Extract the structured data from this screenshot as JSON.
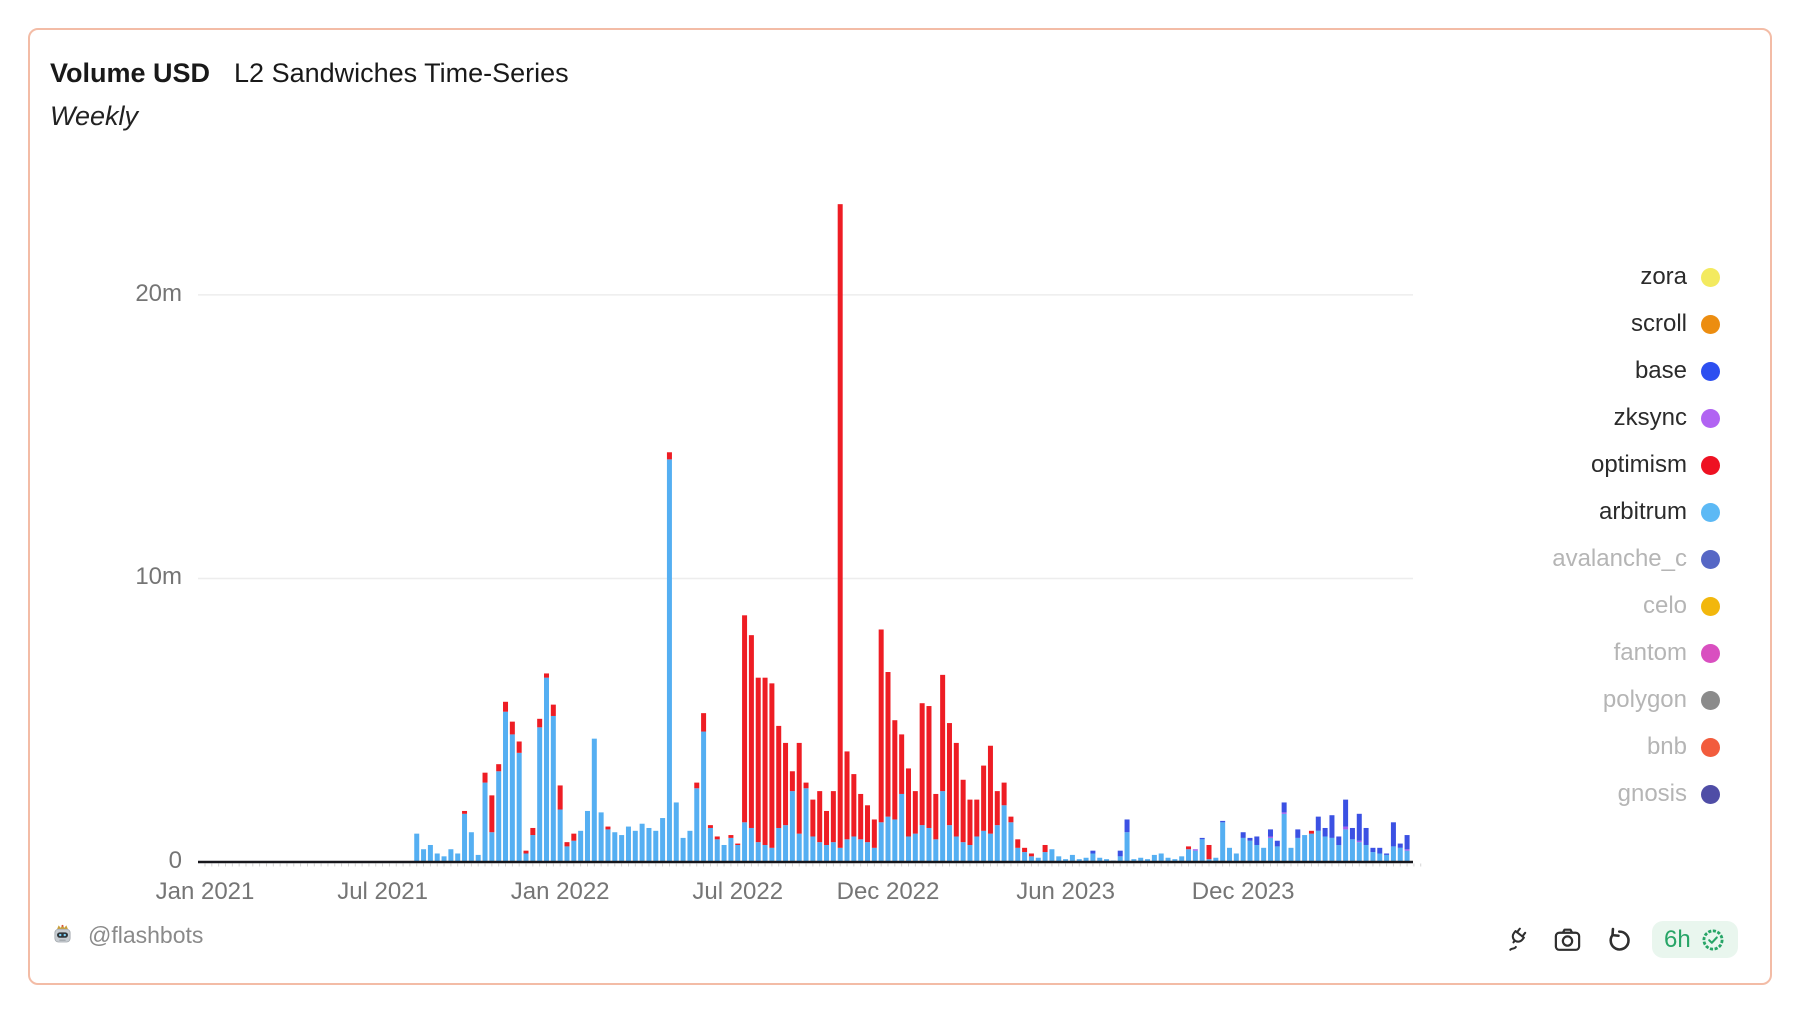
{
  "header": {
    "title_bold": "Volume USD",
    "title": "L2 Sandwiches Time-Series",
    "subtitle": "Weekly"
  },
  "legend": {
    "items": [
      {
        "label": "zora",
        "color": "#f3ea5f",
        "muted": false
      },
      {
        "label": "scroll",
        "color": "#ec8d10",
        "muted": false
      },
      {
        "label": "base",
        "color": "#2d4ff0",
        "muted": false
      },
      {
        "label": "zksync",
        "color": "#b163f2",
        "muted": false
      },
      {
        "label": "optimism",
        "color": "#ee1122",
        "muted": false
      },
      {
        "label": "arbitrum",
        "color": "#5cb9f5",
        "muted": false
      },
      {
        "label": "avalanche_c",
        "color": "#5667c5",
        "muted": true
      },
      {
        "label": "celo",
        "color": "#f2b70c",
        "muted": true
      },
      {
        "label": "fantom",
        "color": "#d94fc0",
        "muted": true
      },
      {
        "label": "polygon",
        "color": "#8b8b8b",
        "muted": true
      },
      {
        "label": "bnb",
        "color": "#f25c3d",
        "muted": true
      },
      {
        "label": "gnosis",
        "color": "#4f4da6",
        "muted": true
      }
    ]
  },
  "footer": {
    "author": "@flashbots",
    "refresh_badge": "6h"
  },
  "chart_data": {
    "type": "bar",
    "stacked": true,
    "title": "Volume USD — L2 Sandwiches Time-Series",
    "subtitle": "Weekly",
    "unit": "USD (millions)",
    "grid": true,
    "legend_position": "right",
    "ylim": [
      0,
      24
    ],
    "y_ticks": [
      {
        "value": 0,
        "label": "0"
      },
      {
        "value": 10,
        "label": "10m"
      },
      {
        "value": 20,
        "label": "20m"
      }
    ],
    "x_ticks": [
      {
        "label": "Jan 2021",
        "date": "2021-01-04"
      },
      {
        "label": "Jul 2021",
        "date": "2021-07-05"
      },
      {
        "label": "Jan 2022",
        "date": "2022-01-03"
      },
      {
        "label": "Jul 2022",
        "date": "2022-07-04"
      },
      {
        "label": "Dec 2022",
        "date": "2022-12-05"
      },
      {
        "label": "Jun 2023",
        "date": "2023-06-05"
      },
      {
        "label": "Dec 2023",
        "date": "2023-12-04"
      }
    ],
    "stack_order": [
      "arbitrum",
      "optimism",
      "zksync",
      "base"
    ],
    "series_colors": {
      "arbitrum": "#55aff2",
      "optimism": "#ee1d24",
      "zksync": "#a55ef0",
      "base": "#3b51e3"
    },
    "columns": [
      "week",
      "arbitrum",
      "optimism",
      "zksync",
      "base"
    ],
    "rows": [
      [
        "2021-08-09",
        1.0,
        0,
        0,
        0
      ],
      [
        "2021-08-16",
        0.45,
        0,
        0,
        0
      ],
      [
        "2021-08-23",
        0.6,
        0,
        0,
        0
      ],
      [
        "2021-08-30",
        0.3,
        0,
        0,
        0
      ],
      [
        "2021-09-06",
        0.2,
        0,
        0,
        0
      ],
      [
        "2021-09-13",
        0.45,
        0,
        0,
        0
      ],
      [
        "2021-09-20",
        0.3,
        0,
        0,
        0
      ],
      [
        "2021-09-27",
        1.7,
        0.1,
        0,
        0
      ],
      [
        "2021-10-04",
        1.05,
        0,
        0,
        0
      ],
      [
        "2021-10-11",
        0.25,
        0,
        0,
        0
      ],
      [
        "2021-10-18",
        2.8,
        0.35,
        0,
        0
      ],
      [
        "2021-10-25",
        1.05,
        1.3,
        0,
        0
      ],
      [
        "2021-11-01",
        3.2,
        0.25,
        0,
        0
      ],
      [
        "2021-11-08",
        5.3,
        0.35,
        0,
        0
      ],
      [
        "2021-11-15",
        4.5,
        0.45,
        0,
        0
      ],
      [
        "2021-11-22",
        3.85,
        0.4,
        0,
        0
      ],
      [
        "2021-11-29",
        0.3,
        0.1,
        0,
        0
      ],
      [
        "2021-12-06",
        0.95,
        0.25,
        0,
        0
      ],
      [
        "2021-12-13",
        4.75,
        0.3,
        0,
        0
      ],
      [
        "2021-12-20",
        6.5,
        0.15,
        0,
        0
      ],
      [
        "2021-12-27",
        5.15,
        0.4,
        0,
        0
      ],
      [
        "2022-01-03",
        1.85,
        0.85,
        0,
        0
      ],
      [
        "2022-01-10",
        0.55,
        0.15,
        0,
        0
      ],
      [
        "2022-01-17",
        0.75,
        0.25,
        0,
        0
      ],
      [
        "2022-01-24",
        1.1,
        0,
        0,
        0
      ],
      [
        "2022-01-31",
        1.8,
        0,
        0,
        0
      ],
      [
        "2022-02-07",
        4.35,
        0,
        0,
        0
      ],
      [
        "2022-02-14",
        1.75,
        0,
        0,
        0
      ],
      [
        "2022-02-21",
        1.15,
        0.1,
        0,
        0
      ],
      [
        "2022-02-28",
        1.05,
        0,
        0,
        0
      ],
      [
        "2022-03-07",
        0.95,
        0,
        0,
        0
      ],
      [
        "2022-03-14",
        1.25,
        0,
        0,
        0
      ],
      [
        "2022-03-21",
        1.1,
        0,
        0,
        0
      ],
      [
        "2022-03-28",
        1.35,
        0,
        0,
        0
      ],
      [
        "2022-04-04",
        1.2,
        0,
        0,
        0
      ],
      [
        "2022-04-11",
        1.1,
        0,
        0,
        0
      ],
      [
        "2022-04-18",
        1.55,
        0,
        0,
        0
      ],
      [
        "2022-04-25",
        14.2,
        0.25,
        0,
        0
      ],
      [
        "2022-05-02",
        2.1,
        0,
        0,
        0
      ],
      [
        "2022-05-09",
        0.85,
        0,
        0,
        0
      ],
      [
        "2022-05-16",
        1.1,
        0,
        0,
        0
      ],
      [
        "2022-05-23",
        2.6,
        0.2,
        0,
        0
      ],
      [
        "2022-05-30",
        4.6,
        0.65,
        0,
        0
      ],
      [
        "2022-06-06",
        1.2,
        0.1,
        0,
        0
      ],
      [
        "2022-06-13",
        0.8,
        0.1,
        0,
        0
      ],
      [
        "2022-06-20",
        0.6,
        0,
        0,
        0
      ],
      [
        "2022-06-27",
        0.85,
        0.1,
        0,
        0
      ],
      [
        "2022-07-04",
        0.6,
        0.05,
        0,
        0
      ],
      [
        "2022-07-11",
        1.4,
        7.3,
        0,
        0
      ],
      [
        "2022-07-18",
        1.2,
        6.8,
        0,
        0
      ],
      [
        "2022-07-25",
        0.7,
        5.8,
        0,
        0
      ],
      [
        "2022-08-01",
        0.6,
        5.9,
        0,
        0
      ],
      [
        "2022-08-08",
        0.5,
        5.8,
        0,
        0
      ],
      [
        "2022-08-15",
        1.2,
        3.6,
        0,
        0
      ],
      [
        "2022-08-22",
        1.3,
        2.9,
        0,
        0
      ],
      [
        "2022-08-29",
        2.5,
        0.7,
        0,
        0
      ],
      [
        "2022-09-05",
        1.0,
        3.2,
        0,
        0
      ],
      [
        "2022-09-12",
        2.6,
        0.2,
        0,
        0
      ],
      [
        "2022-09-19",
        0.9,
        1.3,
        0,
        0
      ],
      [
        "2022-09-26",
        0.7,
        1.8,
        0,
        0
      ],
      [
        "2022-10-03",
        0.6,
        1.2,
        0,
        0
      ],
      [
        "2022-10-10",
        0.7,
        1.8,
        0,
        0
      ],
      [
        "2022-10-17",
        0.5,
        22.7,
        0,
        0
      ],
      [
        "2022-10-24",
        0.8,
        3.1,
        0,
        0
      ],
      [
        "2022-10-31",
        0.9,
        2.2,
        0,
        0
      ],
      [
        "2022-11-07",
        0.8,
        1.6,
        0,
        0
      ],
      [
        "2022-11-14",
        0.7,
        1.3,
        0,
        0
      ],
      [
        "2022-11-21",
        0.5,
        1.0,
        0,
        0
      ],
      [
        "2022-11-28",
        1.4,
        6.8,
        0,
        0
      ],
      [
        "2022-12-05",
        1.6,
        5.1,
        0,
        0
      ],
      [
        "2022-12-12",
        1.5,
        3.5,
        0,
        0
      ],
      [
        "2022-12-19",
        2.4,
        2.1,
        0,
        0
      ],
      [
        "2022-12-26",
        0.9,
        2.4,
        0,
        0
      ],
      [
        "2023-01-02",
        1.0,
        1.5,
        0,
        0
      ],
      [
        "2023-01-09",
        1.3,
        4.3,
        0,
        0
      ],
      [
        "2023-01-16",
        1.2,
        4.3,
        0,
        0
      ],
      [
        "2023-01-23",
        0.8,
        1.6,
        0,
        0
      ],
      [
        "2023-01-30",
        2.5,
        4.1,
        0,
        0
      ],
      [
        "2023-02-06",
        1.3,
        3.6,
        0,
        0
      ],
      [
        "2023-02-13",
        0.9,
        3.3,
        0,
        0
      ],
      [
        "2023-02-20",
        0.7,
        2.2,
        0,
        0
      ],
      [
        "2023-02-27",
        0.6,
        1.6,
        0,
        0
      ],
      [
        "2023-03-06",
        0.9,
        1.3,
        0,
        0
      ],
      [
        "2023-03-13",
        1.1,
        2.3,
        0,
        0
      ],
      [
        "2023-03-20",
        1.0,
        3.1,
        0,
        0
      ],
      [
        "2023-03-27",
        1.3,
        1.2,
        0,
        0
      ],
      [
        "2023-04-03",
        2.0,
        0.8,
        0,
        0
      ],
      [
        "2023-04-10",
        1.4,
        0.2,
        0,
        0
      ],
      [
        "2023-04-17",
        0.5,
        0.3,
        0,
        0
      ],
      [
        "2023-04-24",
        0.35,
        0.15,
        0,
        0
      ],
      [
        "2023-05-01",
        0.2,
        0.1,
        0,
        0
      ],
      [
        "2023-05-08",
        0.15,
        0,
        0,
        0
      ],
      [
        "2023-05-15",
        0.35,
        0.25,
        0,
        0
      ],
      [
        "2023-05-22",
        0.45,
        0,
        0,
        0
      ],
      [
        "2023-05-29",
        0.2,
        0,
        0,
        0
      ],
      [
        "2023-06-05",
        0.1,
        0,
        0,
        0
      ],
      [
        "2023-06-12",
        0.25,
        0,
        0,
        0
      ],
      [
        "2023-06-19",
        0.1,
        0,
        0,
        0
      ],
      [
        "2023-06-26",
        0.15,
        0,
        0,
        0
      ],
      [
        "2023-07-03",
        0.3,
        0,
        0,
        0.1
      ],
      [
        "2023-07-10",
        0.15,
        0,
        0,
        0
      ],
      [
        "2023-07-17",
        0.1,
        0,
        0,
        0
      ],
      [
        "2023-07-24",
        0.05,
        0,
        0,
        0
      ],
      [
        "2023-07-31",
        0.2,
        0,
        0,
        0.2
      ],
      [
        "2023-08-07",
        1.05,
        0,
        0,
        0.45
      ],
      [
        "2023-08-14",
        0.1,
        0,
        0,
        0
      ],
      [
        "2023-08-21",
        0.15,
        0,
        0,
        0
      ],
      [
        "2023-08-28",
        0.1,
        0,
        0,
        0
      ],
      [
        "2023-09-04",
        0.25,
        0,
        0,
        0
      ],
      [
        "2023-09-11",
        0.3,
        0,
        0,
        0
      ],
      [
        "2023-09-18",
        0.15,
        0,
        0,
        0
      ],
      [
        "2023-09-25",
        0.1,
        0,
        0,
        0
      ],
      [
        "2023-10-02",
        0.2,
        0,
        0,
        0
      ],
      [
        "2023-10-09",
        0.45,
        0.1,
        0,
        0
      ],
      [
        "2023-10-16",
        0.4,
        0,
        0.05,
        0
      ],
      [
        "2023-10-23",
        0.8,
        0,
        0,
        0.05
      ],
      [
        "2023-10-30",
        0.1,
        0.5,
        0,
        0
      ],
      [
        "2023-11-06",
        0.15,
        0,
        0,
        0
      ],
      [
        "2023-11-13",
        1.4,
        0,
        0,
        0.05
      ],
      [
        "2023-11-20",
        0.5,
        0,
        0,
        0
      ],
      [
        "2023-11-27",
        0.3,
        0,
        0,
        0
      ],
      [
        "2023-12-04",
        0.85,
        0,
        0,
        0.2
      ],
      [
        "2023-12-11",
        0.75,
        0,
        0,
        0.1
      ],
      [
        "2023-12-18",
        0.6,
        0,
        0,
        0.3
      ],
      [
        "2023-12-25",
        0.5,
        0,
        0,
        0
      ],
      [
        "2024-01-01",
        0.85,
        0,
        0.05,
        0.25
      ],
      [
        "2024-01-08",
        0.55,
        0,
        0,
        0.2
      ],
      [
        "2024-01-15",
        1.7,
        0,
        0.05,
        0.35
      ],
      [
        "2024-01-22",
        0.5,
        0,
        0,
        0
      ],
      [
        "2024-01-29",
        0.85,
        0,
        0,
        0.3
      ],
      [
        "2024-02-05",
        0.95,
        0,
        0,
        0
      ],
      [
        "2024-02-12",
        1.0,
        0.1,
        0,
        0
      ],
      [
        "2024-02-19",
        1.1,
        0,
        0,
        0.5
      ],
      [
        "2024-02-26",
        0.9,
        0,
        0,
        0.3
      ],
      [
        "2024-03-04",
        0.85,
        0,
        0,
        0.8
      ],
      [
        "2024-03-11",
        0.6,
        0,
        0,
        0.3
      ],
      [
        "2024-03-18",
        1.15,
        0,
        0.1,
        0.95
      ],
      [
        "2024-03-25",
        0.8,
        0,
        0,
        0.4
      ],
      [
        "2024-04-01",
        0.7,
        0,
        0.05,
        0.95
      ],
      [
        "2024-04-08",
        0.6,
        0,
        0,
        0.6
      ],
      [
        "2024-04-15",
        0.35,
        0,
        0,
        0.15
      ],
      [
        "2024-04-22",
        0.3,
        0,
        0,
        0.2
      ],
      [
        "2024-04-29",
        0.25,
        0,
        0,
        0.05
      ],
      [
        "2024-05-06",
        0.55,
        0,
        0,
        0.85
      ],
      [
        "2024-05-13",
        0.5,
        0,
        0,
        0.15
      ],
      [
        "2024-05-20",
        0.4,
        0,
        0.05,
        0.5
      ]
    ]
  }
}
